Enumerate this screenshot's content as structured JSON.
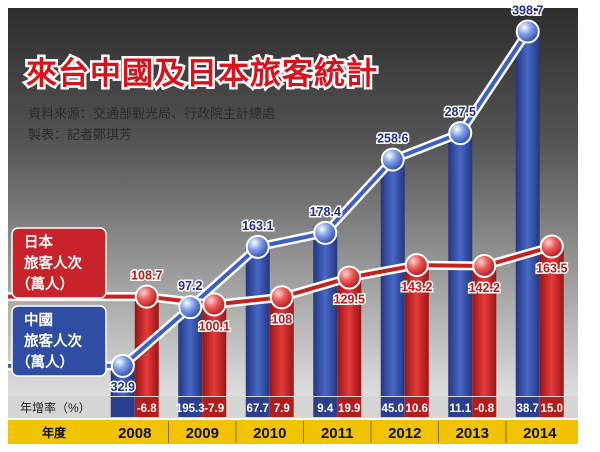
{
  "chart_data": {
    "type": "bar",
    "title": "來台中國及日本旅客統計",
    "source": "資料來源：交通部觀光局、行政院主計總處",
    "credit": "製表：記者鄭琪芳",
    "categories": [
      "2008",
      "2009",
      "2010",
      "2011",
      "2012",
      "2013",
      "2014"
    ],
    "series": [
      {
        "name_line1": "中國",
        "name_line2": "旅客人次",
        "name_line3": "（萬人）",
        "color": "#3550a8",
        "values": [
          32.9,
          97.2,
          163.1,
          178.4,
          258.6,
          287.5,
          398.7
        ],
        "value_labels": [
          "32.9",
          "97.2",
          "163.1",
          "178.4",
          "258.6",
          "287.5",
          "398.7"
        ],
        "growth": [
          "",
          "195.3",
          "67.7",
          "9.4",
          "45.0",
          "11.1",
          "38.7"
        ]
      },
      {
        "name_line1": "日本",
        "name_line2": "旅客人次",
        "name_line3": "（萬人）",
        "color": "#d22a2a",
        "values": [
          108.7,
          100.1,
          108,
          129.5,
          143.2,
          142.2,
          163.5
        ],
        "value_labels": [
          "108.7",
          "100.1",
          "108",
          "129.5",
          "143.2",
          "142.2",
          "163.5"
        ],
        "growth": [
          "-6.8",
          "-7.9",
          "7.9",
          "19.9",
          "10.6",
          "-0.8",
          "15.0"
        ]
      }
    ],
    "growth_row_label": "年增率（%）",
    "year_row_label": "年度",
    "ylim": [
      0,
      420
    ],
    "grid": false
  }
}
